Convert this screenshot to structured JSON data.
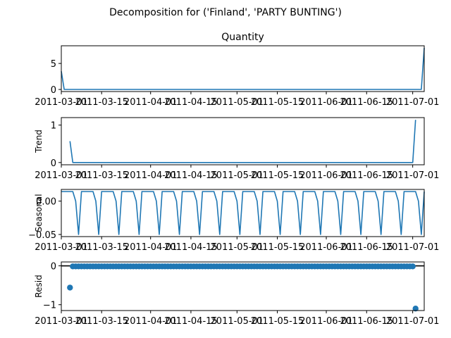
{
  "title": "Decomposition for ('Finland', 'PARTY BUNTING')",
  "chart_data": [
    {
      "type": "line",
      "panel": "observed",
      "title": "Quantity",
      "ylabel": "",
      "x": [
        "2011-03-01",
        "2011-03-02",
        "2011-07-04",
        "2011-07-05"
      ],
      "values": [
        3.5,
        0,
        0,
        8
      ],
      "ylim": [
        -0.4,
        8.4
      ],
      "yticks": [
        0,
        5
      ],
      "xlim": [
        "2011-03-01",
        "2011-07-05"
      ],
      "xticks": [
        "2011-03-01",
        "2011-03-15",
        "2011-04-01",
        "2011-04-15",
        "2011-05-01",
        "2011-05-15",
        "2011-06-01",
        "2011-06-15",
        "2011-07-01"
      ]
    },
    {
      "type": "line",
      "panel": "trend",
      "title": "",
      "ylabel": "Trend",
      "x": [
        "2011-03-04",
        "2011-03-05",
        "2011-07-01",
        "2011-07-02"
      ],
      "values": [
        0.57,
        0,
        0,
        1.14
      ],
      "ylim": [
        -0.06,
        1.2
      ],
      "yticks": [
        0,
        1
      ],
      "xlim": [
        "2011-03-01",
        "2011-07-05"
      ],
      "xticks": [
        "2011-03-01",
        "2011-03-15",
        "2011-04-01",
        "2011-04-15",
        "2011-05-01",
        "2011-05-15",
        "2011-06-01",
        "2011-06-15",
        "2011-07-01"
      ]
    },
    {
      "type": "line",
      "panel": "seasonal",
      "title": "",
      "ylabel": "Seasonal",
      "period": 7,
      "start": "2011-03-01",
      "end": "2011-07-05",
      "pattern": [
        0.0143,
        0.0143,
        0.0143,
        0.0143,
        0.0143,
        -0.0,
        -0.05
      ],
      "ylim": [
        -0.0532,
        0.0175
      ],
      "yticks": [
        0.0,
        -0.05
      ],
      "ytick_labels": [
        "0.00",
        "−0.05"
      ],
      "xlim": [
        "2011-03-01",
        "2011-07-05"
      ],
      "xticks": [
        "2011-03-01",
        "2011-03-15",
        "2011-04-01",
        "2011-04-15",
        "2011-05-01",
        "2011-05-15",
        "2011-06-01",
        "2011-06-15",
        "2011-07-01"
      ]
    },
    {
      "type": "scatter",
      "panel": "resid",
      "title": "",
      "ylabel": "Resid",
      "start": "2011-03-04",
      "end": "2011-07-02",
      "typical_value": -0.014,
      "outliers": [
        {
          "x": "2011-03-04",
          "y": -0.56
        },
        {
          "x": "2011-07-02",
          "y": -1.1
        }
      ],
      "ylim": [
        -1.15,
        0.1
      ],
      "yticks": [
        0,
        -1
      ],
      "ytick_labels": [
        "0",
        "−1"
      ],
      "xlim": [
        "2011-03-01",
        "2011-07-05"
      ],
      "xticks": [
        "2011-03-01",
        "2011-03-15",
        "2011-04-01",
        "2011-04-15",
        "2011-05-01",
        "2011-05-15",
        "2011-06-01",
        "2011-06-15",
        "2011-07-01"
      ]
    }
  ]
}
